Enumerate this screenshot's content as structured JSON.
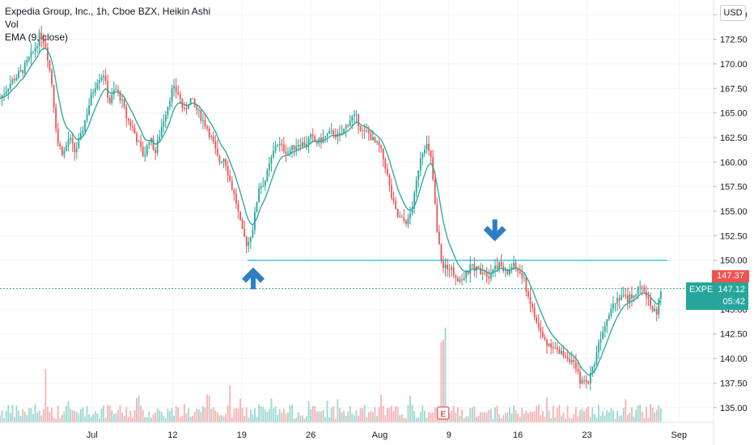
{
  "legend": {
    "title": "Expedia Group, Inc., 1h, Cboe BZX, Heikin Ashi",
    "vol": "Vol",
    "ema": "EMA (9, close)"
  },
  "currency": "USD",
  "ticker": {
    "symbol": "EXPE",
    "price": "147.12",
    "countdown": "05:42"
  },
  "prev_price": "147.37",
  "earnings_marker": "E",
  "colors": {
    "up": "#26a69a",
    "down": "#ef5350",
    "ema": "#26a69a",
    "level": "#00bcd4",
    "arrow": "#2f7dc6"
  },
  "chart_data": {
    "type": "candlestick",
    "ylim": [
      133.5,
      176.5
    ],
    "yticks": [
      135.0,
      137.5,
      140.0,
      142.5,
      145.0,
      147.5,
      150.0,
      152.5,
      155.0,
      157.5,
      160.0,
      162.5,
      165.0,
      167.5,
      170.0,
      172.5,
      175.0
    ],
    "ytick_labels": [
      "135.00",
      "137.50",
      "140.00",
      "142.50",
      "145.00",
      "147.50",
      "150.00",
      "152.50",
      "155.00",
      "157.50",
      "160.00",
      "162.50",
      "165.00",
      "167.50",
      "170.00",
      "172.50",
      "175.00"
    ],
    "xlim": [
      0,
      62
    ],
    "xticks": [
      {
        "label": "Jul",
        "x": 8
      },
      {
        "label": "12",
        "x": 15
      },
      {
        "label": "19",
        "x": 21
      },
      {
        "label": "26",
        "x": 27
      },
      {
        "label": "Aug",
        "x": 33
      },
      {
        "label": "9",
        "x": 39
      },
      {
        "label": "16",
        "x": 45
      },
      {
        "label": "23",
        "x": 51
      },
      {
        "label": "Sep",
        "x": 59
      }
    ],
    "path": [
      [
        0,
        166.5
      ],
      [
        1,
        168.2
      ],
      [
        2,
        169.4
      ],
      [
        3,
        171.5
      ],
      [
        3.5,
        173.0
      ],
      [
        4,
        171.8
      ],
      [
        4.5,
        168.0
      ],
      [
        5,
        162.0
      ],
      [
        5.5,
        160.8
      ],
      [
        6,
        162.5
      ],
      [
        6.5,
        161.0
      ],
      [
        7,
        162.5
      ],
      [
        7.5,
        164.8
      ],
      [
        8,
        167.0
      ],
      [
        8.5,
        168.5
      ],
      [
        9,
        169.0
      ],
      [
        9.5,
        166.0
      ],
      [
        10,
        167.5
      ],
      [
        10.5,
        166.5
      ],
      [
        11,
        164.5
      ],
      [
        11.5,
        163.5
      ],
      [
        12,
        162.0
      ],
      [
        12.5,
        160.5
      ],
      [
        13,
        162.5
      ],
      [
        13.5,
        161.0
      ],
      [
        14,
        163.5
      ],
      [
        14.5,
        165.5
      ],
      [
        15,
        167.5
      ],
      [
        15.5,
        167.0
      ],
      [
        16,
        165.0
      ],
      [
        16.5,
        166.5
      ],
      [
        17,
        165.5
      ],
      [
        17.5,
        164.5
      ],
      [
        18,
        163.5
      ],
      [
        18.5,
        162.0
      ],
      [
        19,
        160.0
      ],
      [
        19.5,
        160.5
      ],
      [
        20,
        158.0
      ],
      [
        20.5,
        156.0
      ],
      [
        21,
        153.0
      ],
      [
        21.5,
        151.5
      ],
      [
        22,
        153.5
      ],
      [
        22.5,
        157.5
      ],
      [
        23,
        158.0
      ],
      [
        23.5,
        160.0
      ],
      [
        24,
        162.0
      ],
      [
        24.5,
        161.5
      ],
      [
        25,
        161.0
      ],
      [
        25.5,
        161.5
      ],
      [
        26,
        162.0
      ],
      [
        26.5,
        161.8
      ],
      [
        27,
        162.5
      ],
      [
        27.5,
        162.0
      ],
      [
        28,
        162.3
      ],
      [
        28.5,
        162.8
      ],
      [
        29,
        163.0
      ],
      [
        29.5,
        162.5
      ],
      [
        30,
        163.5
      ],
      [
        30.5,
        164.5
      ],
      [
        31,
        164.5
      ],
      [
        31.5,
        163.0
      ],
      [
        32,
        163.0
      ],
      [
        32.5,
        162.0
      ],
      [
        33,
        161.5
      ],
      [
        33.5,
        159.5
      ],
      [
        34,
        156.5
      ],
      [
        34.5,
        154.5
      ],
      [
        35,
        154.0
      ],
      [
        35.5,
        154.0
      ],
      [
        36,
        156.5
      ],
      [
        36.5,
        160.5
      ],
      [
        37,
        162.0
      ],
      [
        37.5,
        160.0
      ],
      [
        38,
        152.5
      ],
      [
        38.5,
        149.0
      ],
      [
        39,
        149.5
      ],
      [
        39.5,
        148.5
      ],
      [
        40,
        148.0
      ],
      [
        40.5,
        148.5
      ],
      [
        41,
        149.5
      ],
      [
        41.5,
        149.0
      ],
      [
        42,
        149.0
      ],
      [
        42.5,
        148.5
      ],
      [
        43,
        149.5
      ],
      [
        43.5,
        149.5
      ],
      [
        44,
        148.5
      ],
      [
        44.5,
        149.5
      ],
      [
        45,
        149.0
      ],
      [
        45.5,
        148.0
      ],
      [
        46,
        146.0
      ],
      [
        46.5,
        144.0
      ],
      [
        47,
        142.5
      ],
      [
        47.5,
        141.5
      ],
      [
        48,
        141.5
      ],
      [
        48.5,
        140.5
      ],
      [
        49,
        140.5
      ],
      [
        49.5,
        140.0
      ],
      [
        50,
        139.0
      ],
      [
        50.5,
        137.5
      ],
      [
        51,
        137.5
      ],
      [
        51.5,
        139.0
      ],
      [
        52,
        141.5
      ],
      [
        52.5,
        143.5
      ],
      [
        53,
        145.0
      ],
      [
        53.5,
        146.0
      ],
      [
        54,
        146.5
      ],
      [
        54.5,
        146.0
      ],
      [
        55,
        146.5
      ],
      [
        55.5,
        147.0
      ],
      [
        56,
        147.0
      ],
      [
        56.5,
        145.5
      ],
      [
        57,
        144.5
      ],
      [
        57.5,
        147.12
      ]
    ],
    "hline": {
      "value": 150.0,
      "x0": 21.5,
      "x1": 58
    },
    "last_price": 147.12,
    "prev_close": 147.37,
    "annotations": [
      {
        "type": "arrow-up",
        "x": 22.0,
        "y": 148.2
      },
      {
        "type": "arrow-down",
        "x": 43.0,
        "y": 153.0
      }
    ],
    "earnings_x": 38.5
  }
}
